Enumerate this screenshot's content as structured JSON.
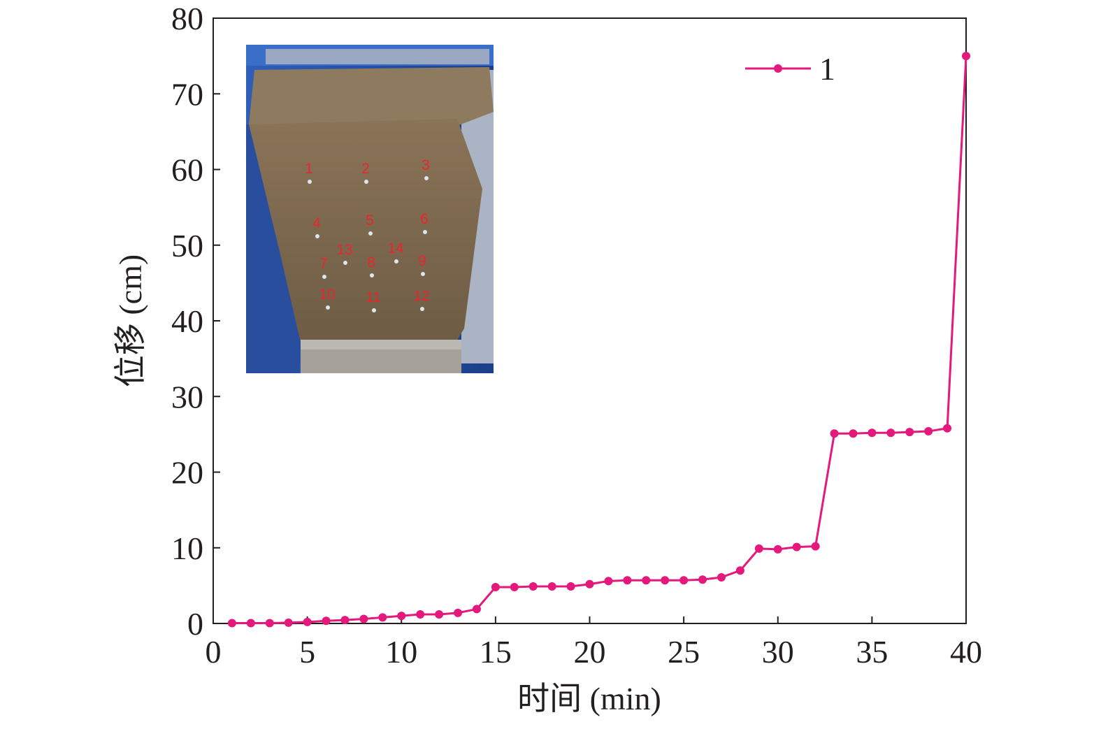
{
  "chart_data": {
    "type": "line",
    "xlabel": "时间 (min)",
    "ylabel": "位移 (cm)",
    "xlim": [
      0,
      40
    ],
    "ylim": [
      0,
      80
    ],
    "xticks": [
      0,
      5,
      10,
      15,
      20,
      25,
      30,
      35,
      40
    ],
    "yticks": [
      0,
      10,
      20,
      30,
      40,
      50,
      60,
      70,
      80
    ],
    "grid": false,
    "legend_position": "top-right",
    "series": [
      {
        "name": "1",
        "color": "#e4197b",
        "marker": "circle",
        "x": [
          1,
          2,
          3,
          4,
          5,
          6,
          7,
          8,
          9,
          10,
          11,
          12,
          13,
          14,
          15,
          16,
          17,
          18,
          19,
          20,
          21,
          22,
          23,
          24,
          25,
          26,
          27,
          28,
          29,
          30,
          31,
          32,
          33,
          34,
          35,
          36,
          37,
          38,
          39,
          40
        ],
        "y": [
          0.05,
          0.05,
          0.05,
          0.1,
          0.2,
          0.35,
          0.45,
          0.6,
          0.8,
          1.0,
          1.2,
          1.2,
          1.4,
          1.9,
          4.8,
          4.8,
          4.9,
          4.9,
          4.9,
          5.2,
          5.6,
          5.7,
          5.7,
          5.7,
          5.7,
          5.8,
          6.1,
          7.0,
          9.9,
          9.8,
          10.1,
          10.2,
          25.1,
          25.1,
          25.2,
          25.2,
          25.3,
          25.4,
          25.8,
          75.0
        ]
      }
    ]
  },
  "inset_photo": {
    "description_icon": "soil-slope-model-photo",
    "point_labels": [
      "1",
      "2",
      "3",
      "4",
      "5",
      "6",
      "7",
      "8",
      "9",
      "10",
      "11",
      "12",
      "13",
      "14"
    ]
  }
}
